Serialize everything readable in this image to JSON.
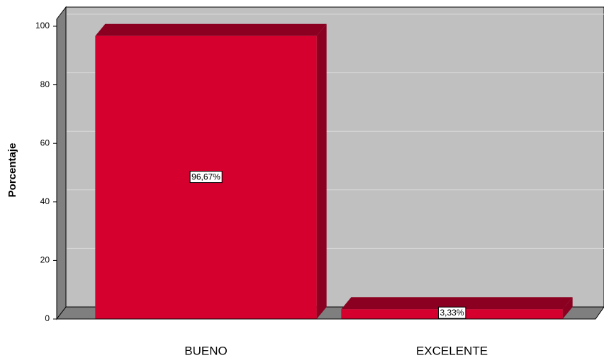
{
  "chart_data": {
    "type": "bar3d",
    "y_label": "Porcentaje",
    "categories": [
      "BUENO",
      "EXCELENTE"
    ],
    "values": [
      96.67,
      3.33
    ],
    "value_labels": [
      "96,67%",
      "3,33%"
    ],
    "color": "#d5002e",
    "side_color": "#8b0020",
    "ylim": [
      0,
      100
    ],
    "yticks": [
      0,
      20,
      40,
      60,
      80,
      100
    ],
    "grid": true
  }
}
